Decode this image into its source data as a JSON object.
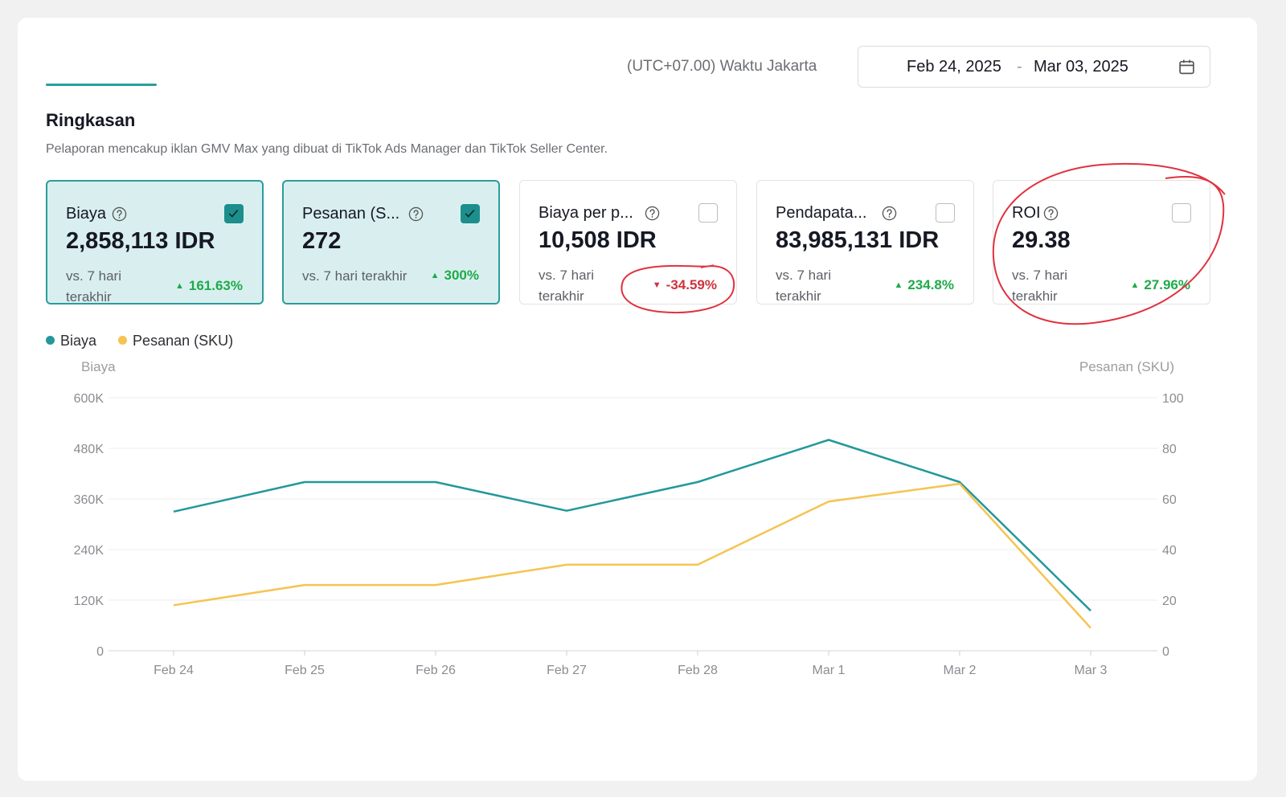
{
  "header": {
    "timezone": "(UTC+07.00) Waktu Jakarta",
    "date_start": "Feb 24, 2025",
    "date_sep": "-",
    "date_end": "Mar 03, 2025"
  },
  "summary": {
    "title": "Ringkasan",
    "subtitle": "Pelaporan mencakup iklan GMV Max yang dibuat di TikTok Ads Manager dan TikTok Seller Center."
  },
  "cards": [
    {
      "label": "Biaya",
      "value": "2,858,113 IDR",
      "vs": "vs. 7 hari terakhir",
      "change": "161.63%",
      "direction": "up",
      "checked": true
    },
    {
      "label": "Pesanan (S...",
      "value": "272",
      "vs": "vs. 7 hari terakhir",
      "change": "300%",
      "direction": "up",
      "checked": true
    },
    {
      "label": "Biaya per p...",
      "value": "10,508 IDR",
      "vs": "vs. 7 hari terakhir",
      "change": "-34.59%",
      "direction": "down",
      "checked": false
    },
    {
      "label": "Pendapata...",
      "value": "83,985,131 IDR",
      "vs": "vs. 7 hari terakhir",
      "change": "234.8%",
      "direction": "up",
      "checked": false
    },
    {
      "label": "ROI",
      "value": "29.38",
      "vs": "vs. 7 hari terakhir",
      "change": "27.96%",
      "direction": "up",
      "checked": false
    }
  ],
  "legend": {
    "biaya": "Biaya",
    "pesanan": "Pesanan (SKU)"
  },
  "colors": {
    "teal": "#23989a",
    "yellow": "#f5c451",
    "annotation": "#e0323f"
  },
  "chart_data": {
    "type": "line",
    "categories": [
      "Feb 24",
      "Feb 25",
      "Feb 26",
      "Feb 27",
      "Feb 28",
      "Mar 1",
      "Mar 2",
      "Mar 3"
    ],
    "series": [
      {
        "name": "Biaya",
        "axis": "left",
        "values": [
          330000,
          400000,
          400000,
          332000,
          400000,
          500000,
          400000,
          95000
        ]
      },
      {
        "name": "Pesanan (SKU)",
        "axis": "right",
        "values": [
          18,
          26,
          26,
          34,
          34,
          59,
          66,
          9
        ]
      }
    ],
    "y_left": {
      "label": "Biaya",
      "min": 0,
      "max": 600000,
      "ticks": [
        "0",
        "120K",
        "240K",
        "360K",
        "480K",
        "600K"
      ]
    },
    "y_right": {
      "label": "Pesanan (SKU)",
      "min": 0,
      "max": 100,
      "ticks": [
        "0",
        "20",
        "40",
        "60",
        "80",
        "100"
      ]
    },
    "grid": true
  }
}
